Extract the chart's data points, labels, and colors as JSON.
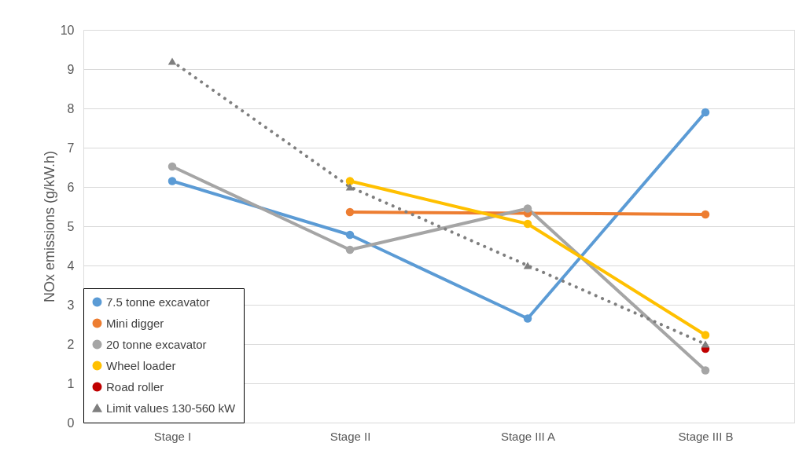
{
  "chart_data": {
    "type": "line",
    "ylabel": "NOx emissions (g/kW.h)",
    "categories": [
      "Stage I",
      "Stage II",
      "Stage III A",
      "Stage III B"
    ],
    "series": [
      {
        "name": "7.5 tonne excavator",
        "color": "#5b9bd5",
        "values": [
          6.15,
          4.78,
          2.65,
          7.9
        ],
        "marker": "circle",
        "line_style": "solid"
      },
      {
        "name": "Mini digger",
        "color": "#ed7d31",
        "values": [
          null,
          5.36,
          5.33,
          5.3
        ],
        "marker": "circle",
        "line_style": "solid"
      },
      {
        "name": "20 tonne excavator",
        "color": "#a5a5a5",
        "values": [
          6.52,
          4.4,
          5.45,
          1.33
        ],
        "marker": "circle",
        "line_style": "solid"
      },
      {
        "name": "Wheel loader",
        "color": "#ffc000",
        "values": [
          null,
          6.15,
          5.06,
          2.23
        ],
        "marker": "circle",
        "line_style": "solid"
      },
      {
        "name": "Road roller",
        "color": "#c00000",
        "values": [
          null,
          null,
          null,
          1.88
        ],
        "marker": "circle",
        "line_style": "solid"
      },
      {
        "name": "Limit values 130-560 kW",
        "color": "#7f7f7f",
        "values": [
          9.2,
          6.0,
          4.0,
          2.0
        ],
        "marker": "triangle",
        "line_style": "dotted"
      }
    ],
    "ylim": [
      0,
      10
    ],
    "yticks": [
      0,
      1,
      2,
      3,
      4,
      5,
      6,
      7,
      8,
      9,
      10
    ],
    "grid": "y",
    "legend": "bottom left"
  }
}
